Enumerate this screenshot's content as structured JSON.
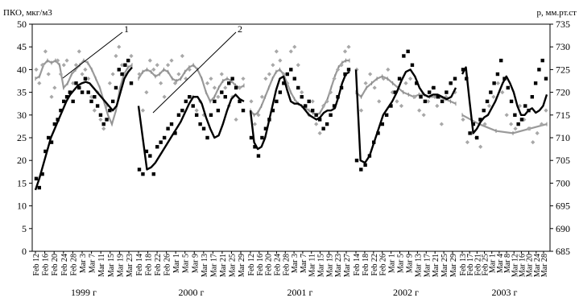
{
  "chart_data": {
    "type": "line",
    "title": "",
    "ylabel_left": "ПКО, мкг/м3",
    "ylabel_right": "р, мм.рт.ст",
    "ylim_left": [
      0,
      50
    ],
    "yticks_left": [
      "0",
      "5",
      "10",
      "15",
      "20",
      "25",
      "30",
      "35",
      "40",
      "45",
      "50"
    ],
    "ylim_right": [
      685,
      735
    ],
    "yticks_right": [
      "685",
      "690",
      "695",
      "700",
      "705",
      "710",
      "715",
      "720",
      "725",
      "730",
      "735"
    ],
    "annotations": [
      "1",
      "2"
    ],
    "years": [
      {
        "label": "1999 г",
        "dates": [
          "Feb 12",
          "Feb 16",
          "Feb 20",
          "Feb 24",
          "Feb 28",
          "Mar 3",
          "Mar 7",
          "Mar 11",
          "Mar 15",
          "Mar 19",
          "Mar 23"
        ],
        "pko_points": [
          16,
          14,
          17,
          22,
          25,
          24,
          28,
          29,
          31,
          33,
          34,
          35,
          33,
          37,
          36,
          35,
          38,
          35,
          33,
          34,
          32,
          30,
          28,
          29,
          31,
          33,
          36,
          40,
          39,
          41,
          42,
          37
        ],
        "pko_smooth": [
          13.5,
          16,
          19,
          22,
          25,
          27,
          29,
          31,
          33,
          34.5,
          35.5,
          36.5,
          37,
          37.3,
          37,
          36,
          35,
          34,
          33,
          32,
          31,
          32,
          35,
          38,
          39.5,
          40.5
        ],
        "p_points": [
          725,
          722,
          726,
          729,
          724,
          719,
          721,
          727,
          724,
          726,
          727,
          720,
          722,
          726,
          729,
          724,
          725,
          723,
          719,
          716,
          720,
          714,
          712,
          717,
          722,
          724,
          728,
          730,
          726,
          724,
          727,
          728
        ],
        "p_smooth": [
          723,
          723.5,
          726,
          727,
          726.5,
          727,
          726,
          721,
          722,
          724,
          725,
          726,
          727,
          726.5,
          725,
          723,
          721,
          718,
          715,
          713,
          716,
          721,
          724,
          725.5,
          726
        ]
      },
      {
        "label": "2000 г",
        "dates": [
          "Feb 14",
          "Feb 18",
          "Feb 22",
          "Feb 26",
          "Mar 1",
          "Mar 5",
          "Mar 9",
          "Mar 13",
          "Mar 17",
          "Mar 21",
          "Mar 25",
          "Mar 29"
        ],
        "pko_points": [
          18,
          17,
          22,
          21,
          17,
          23,
          24,
          25,
          27,
          28,
          26,
          30,
          31,
          33,
          34,
          32,
          30,
          28,
          27,
          25,
          30,
          33,
          31,
          35,
          34,
          37,
          38,
          36,
          33,
          31
        ],
        "pko_smooth": [
          32,
          25,
          18,
          18.5,
          19.5,
          21,
          22.5,
          24,
          25.5,
          27,
          28.5,
          30.5,
          32.5,
          34,
          34,
          32.5,
          29.5,
          27,
          25,
          25.5,
          28,
          31,
          33.5,
          34.5,
          33.5,
          33
        ],
        "p_points": [
          724,
          716,
          720,
          727,
          725,
          726,
          722,
          719,
          726,
          727,
          722,
          724,
          728,
          723,
          725,
          719,
          716,
          718,
          715,
          722,
          723,
          721,
          719,
          724,
          721,
          717,
          719,
          714,
          721,
          723
        ],
        "p_smooth": [
          723,
          724.5,
          725,
          724.5,
          723.5,
          724,
          725,
          724.5,
          723,
          722.5,
          723,
          724.5,
          725.5,
          726,
          725,
          723,
          720,
          718,
          719,
          721,
          722.5,
          723,
          722.5,
          721.5,
          721,
          721.5
        ]
      },
      {
        "label": "2001 г",
        "dates": [
          "Feb 12",
          "Feb 16",
          "Feb 20",
          "Feb 24",
          "Feb 28",
          "Mar 3",
          "Mar 7",
          "Mar 11",
          "Mar 15",
          "Mar 19",
          "Mar 23",
          "Mar 27"
        ],
        "pko_points": [
          25,
          23,
          21,
          25,
          27,
          29,
          31,
          33,
          35,
          37,
          39,
          40,
          38,
          36,
          34,
          32,
          33,
          31,
          30,
          29,
          27,
          28,
          30,
          32,
          34,
          36,
          39,
          40
        ],
        "pko_smooth": [
          31,
          24,
          22.5,
          23,
          25,
          28.5,
          32,
          35.5,
          38,
          38.5,
          35.5,
          33,
          32.5,
          32.5,
          32,
          31,
          30,
          29.5,
          29,
          29.5,
          30.5,
          31,
          31,
          31.5,
          34,
          37,
          39,
          39.5
        ],
        "p_points": [
          718,
          713,
          715,
          719,
          723,
          724,
          726,
          729,
          727,
          724,
          722,
          729,
          730,
          726,
          720,
          717,
          715,
          718,
          713,
          711,
          717,
          718,
          720,
          723,
          725,
          726,
          729,
          730
        ],
        "p_smooth": [
          716,
          715,
          715.5,
          717,
          719,
          721,
          723,
          724.5,
          725,
          724,
          722,
          720,
          718.5,
          717.5,
          717,
          716.5,
          716,
          715.5,
          715,
          715.5,
          717,
          718.5,
          721,
          723.5,
          725.5,
          726.5,
          727,
          727
        ]
      },
      {
        "label": "2002 г",
        "dates": [
          "Feb 14",
          "Feb 18",
          "Feb 22",
          "Feb 26",
          "Mar 1",
          "Mar 5",
          "Mar 9",
          "Mar 13",
          "Mar 17",
          "Mar 21",
          "Mar 25",
          "Mar 29"
        ],
        "pko_points": [
          20,
          18,
          19,
          21,
          24,
          26,
          28,
          30,
          32,
          35,
          38,
          43,
          44,
          41,
          37,
          34,
          33,
          35,
          36,
          34,
          33,
          35,
          37,
          38
        ],
        "pko_smooth": [
          40,
          20,
          19.5,
          21,
          24,
          27,
          30,
          31.5,
          33,
          35,
          37.5,
          39.5,
          40,
          38.5,
          36,
          34.5,
          34,
          34.5,
          34.5,
          34,
          33.5,
          34,
          36
        ],
        "p_points": [
          725,
          716,
          722,
          724,
          721,
          718,
          723,
          725,
          720,
          718,
          717,
          722,
          723,
          719,
          716,
          715,
          718,
          721,
          717,
          713,
          719,
          722,
          720
        ],
        "p_smooth": [
          720,
          719,
          721,
          722,
          723,
          723.5,
          723,
          722,
          721,
          720,
          719.5,
          719,
          719.5,
          719.5,
          719,
          719,
          719,
          718.5,
          718,
          717.5
        ]
      },
      {
        "label": "2003 г",
        "dates": [
          "Feb 13",
          "Feb 17",
          "Feb 21",
          "Feb 25",
          "Mar 1",
          "Mar 4",
          "Mar 8",
          "Mar 12",
          "Mar 16",
          "Mar 20",
          "Mar 24",
          "Mar 28"
        ],
        "pko_points": [
          40,
          38,
          26,
          28,
          25,
          29,
          31,
          33,
          35,
          37,
          39,
          42,
          38,
          36,
          33,
          30,
          28,
          29,
          32,
          31,
          34,
          37,
          40,
          42,
          38
        ],
        "pko_smooth": [
          39,
          40.5,
          33,
          26,
          27,
          28.5,
          29.5,
          30,
          31.5,
          33,
          35,
          37,
          38.5,
          37,
          35,
          32,
          30,
          30,
          31,
          31.5,
          30.5,
          31,
          32,
          34.5
        ],
        "p_points": [
          714,
          709,
          711,
          710,
          708,
          713,
          717,
          719,
          722,
          720,
          715,
          713,
          712,
          717,
          714,
          712,
          709,
          711,
          713,
          716
        ],
        "p_smooth": [
          715,
          713,
          711.5,
          711,
          712,
          713
        ]
      }
    ]
  }
}
